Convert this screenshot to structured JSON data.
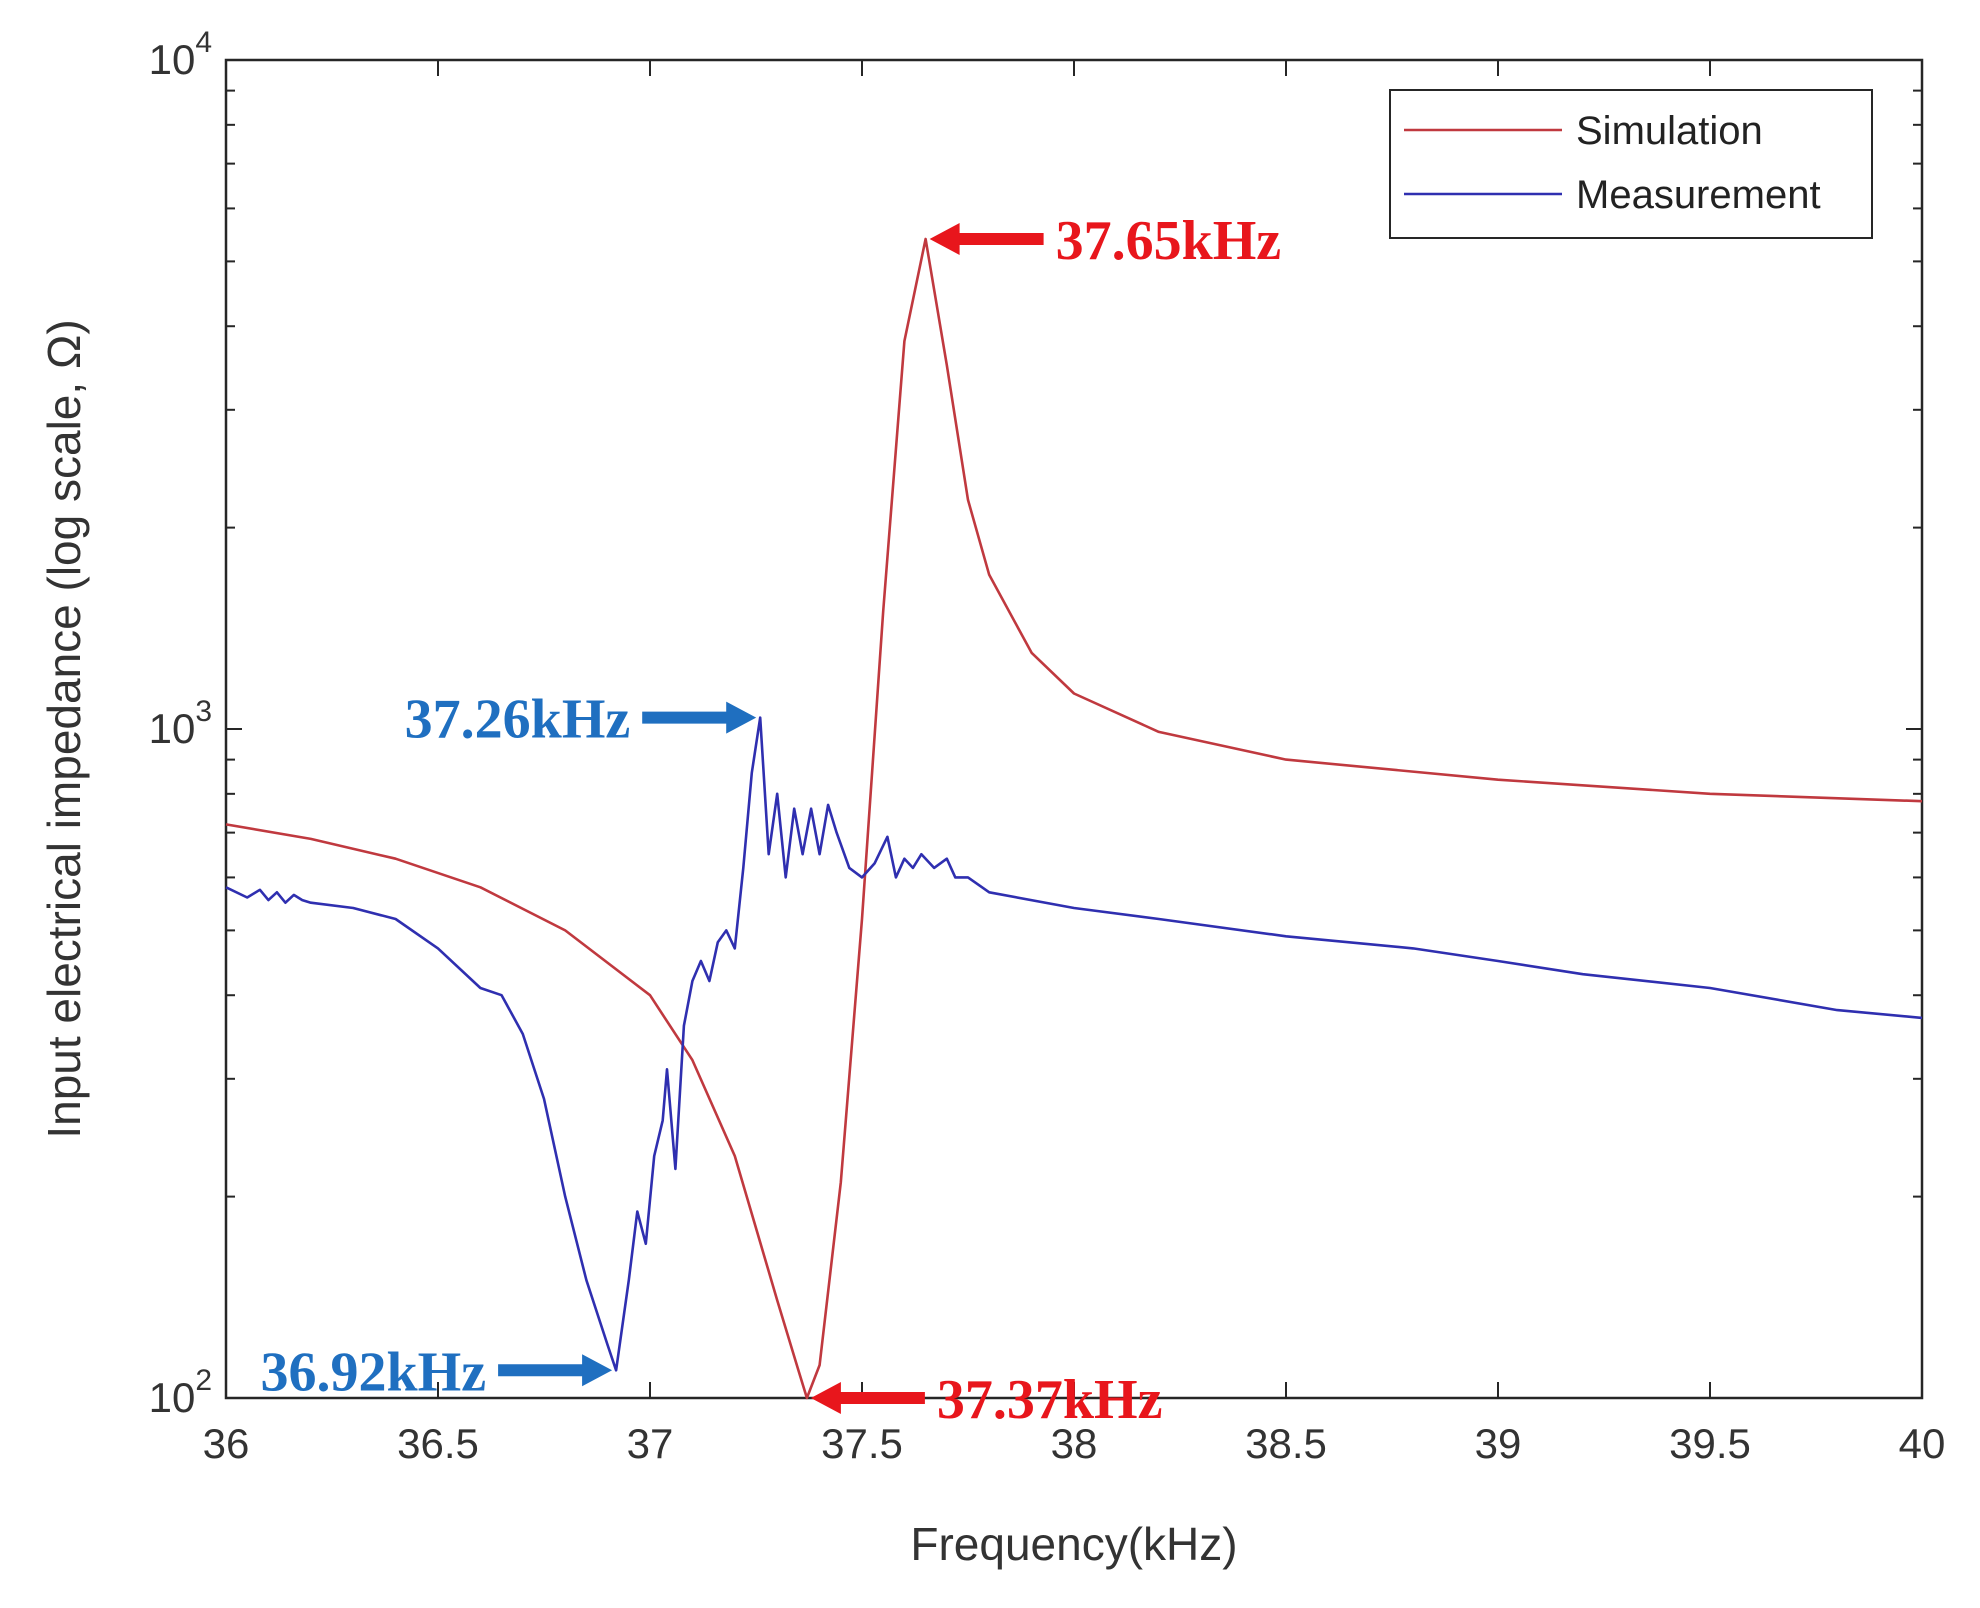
{
  "chart_data": {
    "type": "line",
    "xlabel": "Frequency(kHz)",
    "ylabel": "Input electrical impedance (log scale, Ω)",
    "xlim": [
      36,
      40
    ],
    "ylim": [
      100,
      10000
    ],
    "yscale": "log",
    "grid": false,
    "legend_position": "top-right",
    "x_ticks": [
      36,
      36.5,
      37,
      37.5,
      38,
      38.5,
      39,
      39.5,
      40
    ],
    "x_tick_labels": [
      "36",
      "36.5",
      "37",
      "37.5",
      "38",
      "38.5",
      "39",
      "39.5",
      "40"
    ],
    "y_ticks": [
      {
        "value": 100,
        "base": "10",
        "exp": "2"
      },
      {
        "value": 1000,
        "base": "10",
        "exp": "3"
      },
      {
        "value": 10000,
        "base": "10",
        "exp": "4"
      }
    ],
    "series": [
      {
        "name": "Simulation",
        "color": "#c0393f",
        "x": [
          36.0,
          36.2,
          36.4,
          36.6,
          36.8,
          37.0,
          37.1,
          37.2,
          37.3,
          37.35,
          37.37,
          37.4,
          37.45,
          37.5,
          37.55,
          37.6,
          37.65,
          37.7,
          37.75,
          37.8,
          37.9,
          38.0,
          38.2,
          38.5,
          39.0,
          39.5,
          40.0
        ],
        "values": [
          720,
          685,
          640,
          580,
          500,
          400,
          320,
          230,
          140,
          110,
          100,
          112,
          210,
          520,
          1500,
          3800,
          5400,
          3500,
          2200,
          1700,
          1300,
          1130,
          990,
          900,
          840,
          800,
          780
        ]
      },
      {
        "name": "Measurement",
        "color": "#2f2fb0",
        "x": [
          36.0,
          36.05,
          36.08,
          36.1,
          36.12,
          36.14,
          36.16,
          36.18,
          36.2,
          36.3,
          36.4,
          36.5,
          36.6,
          36.65,
          36.7,
          36.75,
          36.8,
          36.85,
          36.9,
          36.92,
          36.95,
          36.97,
          36.99,
          37.01,
          37.03,
          37.04,
          37.06,
          37.08,
          37.1,
          37.12,
          37.14,
          37.16,
          37.18,
          37.2,
          37.22,
          37.24,
          37.26,
          37.28,
          37.3,
          37.32,
          37.34,
          37.36,
          37.38,
          37.4,
          37.42,
          37.44,
          37.47,
          37.5,
          37.53,
          37.56,
          37.58,
          37.6,
          37.62,
          37.64,
          37.67,
          37.7,
          37.72,
          37.75,
          37.8,
          38.0,
          38.2,
          38.5,
          38.8,
          39.0,
          39.2,
          39.5,
          39.8,
          40.0
        ],
        "values": [
          580,
          560,
          575,
          555,
          570,
          550,
          565,
          555,
          550,
          540,
          520,
          470,
          410,
          400,
          350,
          280,
          200,
          150,
          120,
          110,
          150,
          190,
          170,
          230,
          260,
          310,
          220,
          360,
          420,
          450,
          420,
          480,
          500,
          470,
          620,
          860,
          1040,
          650,
          800,
          600,
          760,
          650,
          760,
          650,
          770,
          700,
          620,
          600,
          630,
          690,
          600,
          640,
          620,
          650,
          620,
          640,
          600,
          600,
          570,
          540,
          520,
          490,
          470,
          450,
          430,
          410,
          380,
          370
        ]
      }
    ],
    "annotations": [
      {
        "text": "37.65kHz",
        "x": 37.65,
        "y": 5400,
        "color": "#e8161c",
        "side": "right"
      },
      {
        "text": "37.26kHz",
        "x": 37.26,
        "y": 1040,
        "color": "#1f6fc0",
        "side": "left"
      },
      {
        "text": "36.92kHz",
        "x": 36.92,
        "y": 110,
        "color": "#1f6fc0",
        "side": "left"
      },
      {
        "text": "37.37kHz",
        "x": 37.37,
        "y": 100,
        "color": "#e8161c",
        "side": "right"
      }
    ]
  }
}
